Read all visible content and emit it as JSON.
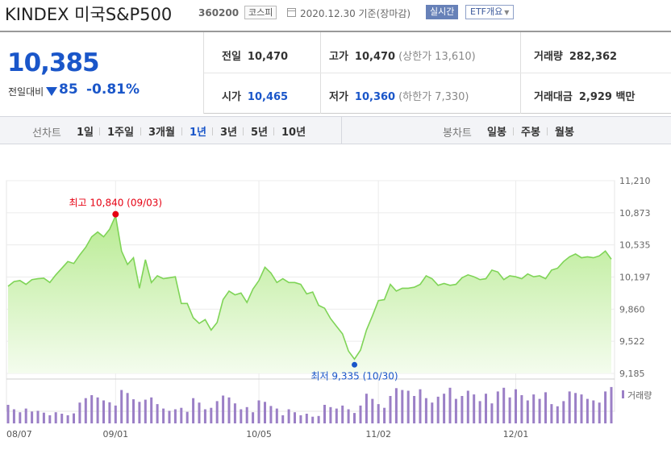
{
  "header": {
    "title": "KINDEX 미국S&P500",
    "code": "360200",
    "market": "코스피",
    "date": "2020.12.30 기준(장마감)",
    "realtime_label": "실시간",
    "etf_label": "ETF개요"
  },
  "summary": {
    "now_price": "10,385",
    "change_label": "전일대비",
    "change_value": "85",
    "change_percent": "-0.81%",
    "prev_close_label": "전일",
    "prev_close": "10,470",
    "open_label": "시가",
    "open": "10,465",
    "high_label": "고가",
    "high": "10,470",
    "upper_limit": "(상한가 13,610)",
    "low_label": "저가",
    "low": "10,360",
    "lower_limit": "(하한가 7,330)",
    "volume_label": "거래량",
    "volume": "282,362",
    "amount_label": "거래대금",
    "amount": "2,929 백만"
  },
  "tabs": {
    "line_title": "선차트",
    "line_periods": [
      "1일",
      "1주일",
      "3개월",
      "1년",
      "3년",
      "5년",
      "10년"
    ],
    "active_period": "1년",
    "candle_title": "봉차트",
    "candle_periods": [
      "일봉",
      "주봉",
      "월봉"
    ]
  },
  "colors": {
    "accent_blue": "#1a56c9",
    "line_green": "#7fd457",
    "area_green": "#c9f0ad",
    "volume_purple": "#9b7fc6",
    "high_red": "#e60012"
  },
  "chart_data": {
    "type": "area",
    "y_ticks": [
      "11,210",
      "10,873",
      "10,535",
      "10,197",
      "9,860",
      "9,522",
      "9,185"
    ],
    "ylim": [
      9185,
      11210
    ],
    "x_ticks": [
      "08/07",
      "09/01",
      "10/05",
      "11/02",
      "12/01"
    ],
    "high_annotation": "최고 10,840 (09/03)",
    "low_annotation": "최저 9,335 (10/30)",
    "volume_legend": "거래량",
    "price": [
      10100,
      10150,
      10160,
      10120,
      10170,
      10180,
      10185,
      10140,
      10220,
      10290,
      10360,
      10340,
      10430,
      10510,
      10620,
      10670,
      10620,
      10700,
      10840,
      10470,
      10330,
      10400,
      10080,
      10380,
      10140,
      10210,
      10180,
      10190,
      10200,
      9920,
      9920,
      9770,
      9710,
      9750,
      9640,
      9720,
      9960,
      10050,
      10010,
      10030,
      9930,
      10070,
      10160,
      10300,
      10240,
      10140,
      10180,
      10140,
      10140,
      10120,
      10020,
      10040,
      9900,
      9870,
      9760,
      9680,
      9600,
      9420,
      9335,
      9430,
      9640,
      9790,
      9950,
      9960,
      10120,
      10050,
      10080,
      10080,
      10090,
      10120,
      10210,
      10180,
      10110,
      10130,
      10110,
      10120,
      10190,
      10220,
      10200,
      10170,
      10180,
      10270,
      10250,
      10170,
      10210,
      10200,
      10180,
      10230,
      10200,
      10210,
      10180,
      10270,
      10290,
      10360,
      10410,
      10440,
      10400,
      10410,
      10400,
      10420,
      10470,
      10385
    ],
    "volume": [
      50,
      38,
      30,
      40,
      32,
      34,
      29,
      22,
      30,
      26,
      22,
      27,
      56,
      68,
      76,
      70,
      62,
      57,
      48,
      90,
      82,
      65,
      58,
      64,
      70,
      52,
      40,
      34,
      38,
      42,
      31,
      68,
      56,
      38,
      42,
      60,
      75,
      70,
      54,
      38,
      44,
      30,
      62,
      58,
      47,
      40,
      22,
      38,
      30,
      22,
      26,
      18,
      20,
      50,
      44,
      40,
      48,
      38,
      28,
      48,
      80,
      66,
      52,
      42,
      74,
      95,
      90,
      88,
      74,
      92,
      68,
      56,
      72,
      80,
      96,
      66,
      74,
      88,
      78,
      60,
      80,
      54,
      86,
      96,
      70,
      92,
      76,
      62,
      78,
      66,
      84,
      52,
      46,
      60,
      86,
      82,
      78,
      66,
      62,
      56,
      86,
      98
    ],
    "volume_max_ref": 100
  }
}
